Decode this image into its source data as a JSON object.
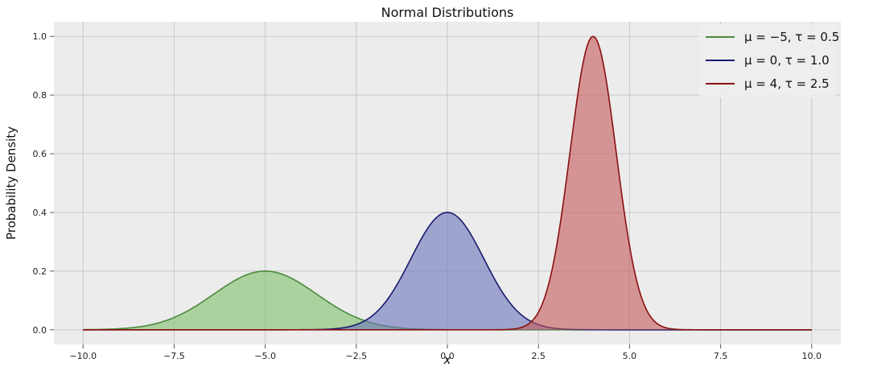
{
  "chart_data": {
    "type": "area",
    "title": "Normal Distributions",
    "xlabel": "x",
    "ylabel": "Probability Density",
    "xlim": [
      -10.8,
      10.8
    ],
    "ylim": [
      -0.05,
      1.05
    ],
    "x_ticks": [
      -10.0,
      -7.5,
      -5.0,
      -2.5,
      0.0,
      2.5,
      5.0,
      7.5,
      10.0
    ],
    "x_tick_labels": [
      "−10.0",
      "−7.5",
      "−5.0",
      "−2.5",
      "0.0",
      "2.5",
      "5.0",
      "7.5",
      "10.0"
    ],
    "y_ticks": [
      0.0,
      0.2,
      0.4,
      0.6,
      0.8,
      1.0
    ],
    "y_tick_labels": [
      "0.0",
      "0.2",
      "0.4",
      "0.6",
      "0.8",
      "1.0"
    ],
    "grid": true,
    "legend_position": "top-right",
    "x_range": [
      -10,
      10
    ],
    "series": [
      {
        "name": "μ = −5,  τ = 0.5",
        "mu": -5,
        "tau": 0.5,
        "peak": 0.2,
        "color": "#4a8a3c",
        "fill": "#7fbf6a"
      },
      {
        "name": "μ = 0,  τ = 1.0",
        "mu": 0,
        "tau": 1.0,
        "peak": 0.4,
        "color": "#1a1a6e",
        "fill": "#6b74bb"
      },
      {
        "name": "μ = 4,  τ = 2.5",
        "mu": 4,
        "tau": 2.5,
        "peak": 1.0,
        "color": "#8b0f0f",
        "fill": "#c45a5a"
      }
    ]
  },
  "colors": {
    "plot_background": "#ececec",
    "grid": "#c8c8c8"
  }
}
